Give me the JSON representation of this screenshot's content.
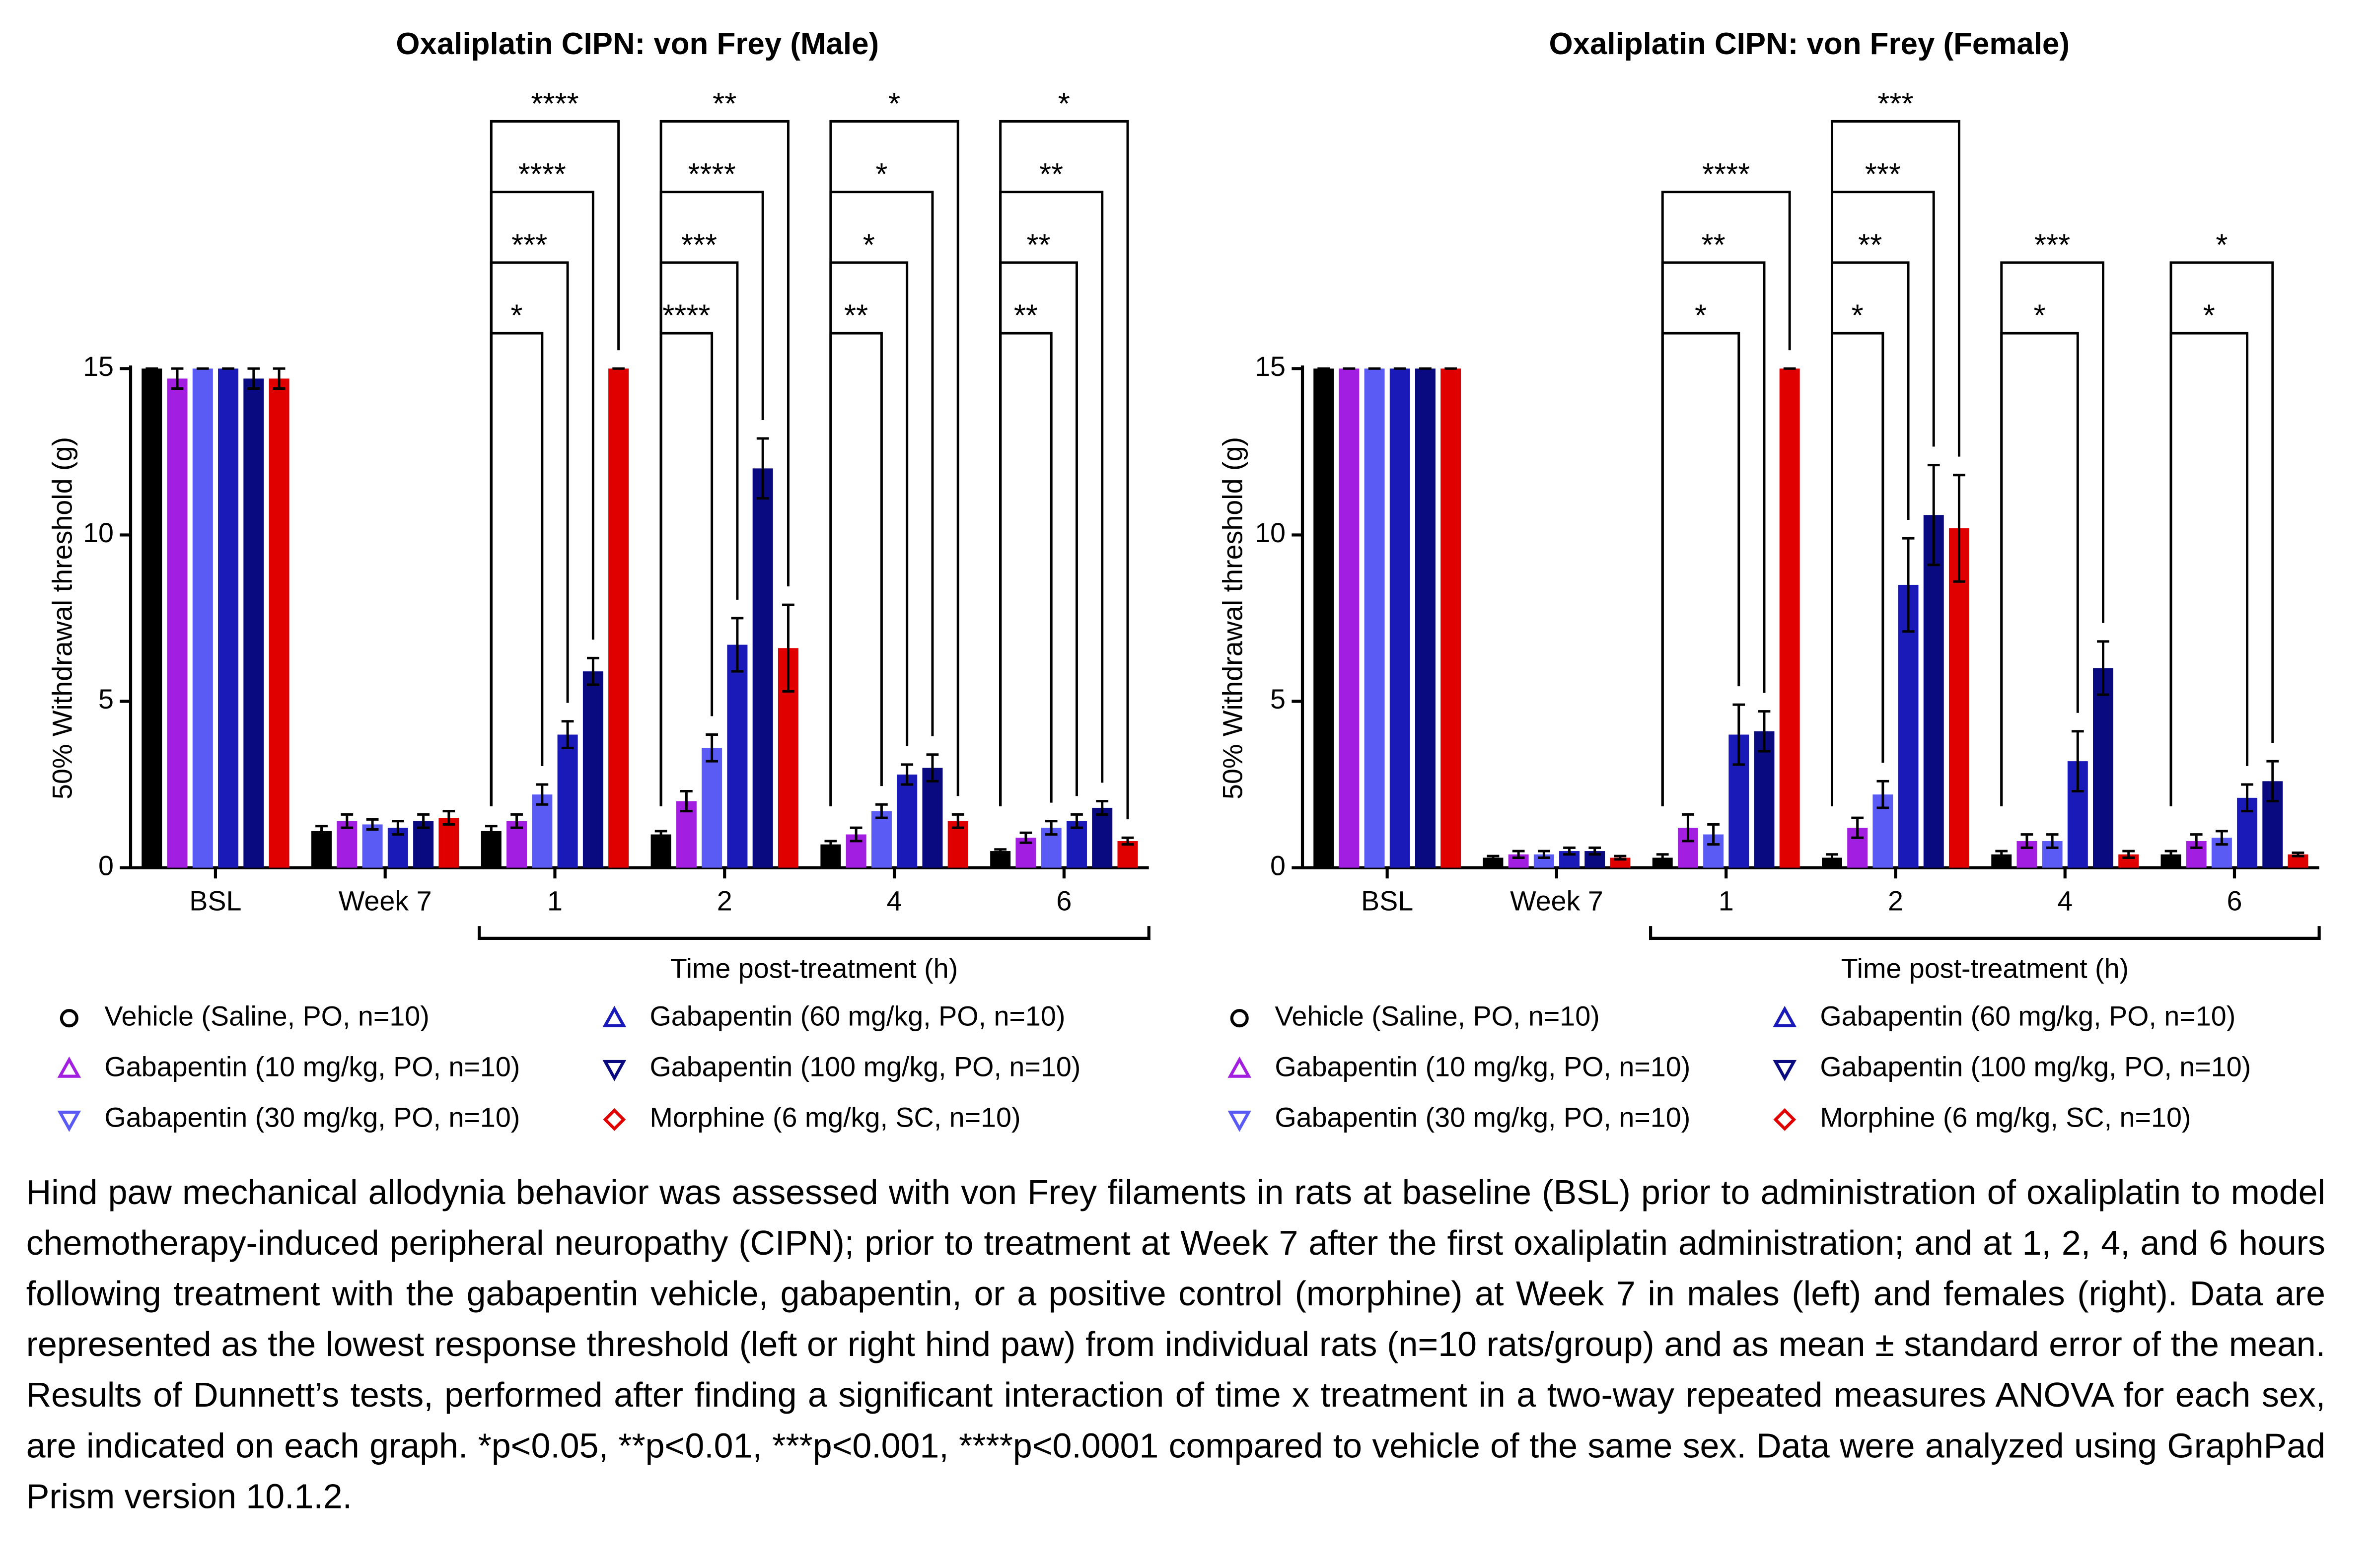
{
  "chart_data": [
    {
      "type": "bar",
      "title": "Oxaliplatin CIPN: von Frey (Male)",
      "y_label": "50% Withdrawal threshold (g)",
      "x_label": "Time post-treatment (h)",
      "categories": [
        "BSL",
        "Week 7",
        "1",
        "2",
        "4",
        "6"
      ],
      "ylim": [
        0,
        15
      ],
      "yticks": [
        0,
        5,
        10,
        15
      ],
      "grid": false,
      "series": [
        {
          "name": "Vehicle (Saline, PO, n=10)",
          "color": "#000000",
          "marker": "circle",
          "values": [
            15,
            1.1,
            1.1,
            1.0,
            0.7,
            0.5
          ],
          "errors": [
            0,
            0.15,
            0.15,
            0.1,
            0.1,
            0.05
          ],
          "significance": [
            null,
            null,
            null,
            null,
            null,
            null
          ]
        },
        {
          "name": "Gabapentin (10 mg/kg, PO, n=10)",
          "color": "#a21ee0",
          "marker": "triangle-up",
          "values": [
            14.7,
            1.4,
            1.4,
            2.0,
            1.0,
            0.9
          ],
          "errors": [
            0.3,
            0.2,
            0.2,
            0.3,
            0.2,
            0.15
          ],
          "significance": [
            null,
            null,
            null,
            null,
            null,
            null
          ]
        },
        {
          "name": "Gabapentin (30 mg/kg, PO, n=10)",
          "color": "#5a5af5",
          "marker": "triangle-down",
          "values": [
            15,
            1.3,
            2.2,
            3.6,
            1.7,
            1.2
          ],
          "errors": [
            0,
            0.15,
            0.3,
            0.4,
            0.2,
            0.2
          ],
          "significance": [
            null,
            null,
            "*",
            "****",
            "**",
            "**"
          ]
        },
        {
          "name": "Gabapentin (60 mg/kg, PO, n=10)",
          "color": "#1a1ab8",
          "marker": "triangle-up",
          "values": [
            15,
            1.2,
            4.0,
            6.7,
            2.8,
            1.4
          ],
          "errors": [
            0,
            0.2,
            0.4,
            0.8,
            0.3,
            0.2
          ],
          "significance": [
            null,
            null,
            "***",
            "***",
            "*",
            "**"
          ]
        },
        {
          "name": "Gabapentin (100 mg/kg, PO, n=10)",
          "color": "#0a0a80",
          "marker": "triangle-down",
          "values": [
            14.7,
            1.4,
            5.9,
            12.0,
            3.0,
            1.8
          ],
          "errors": [
            0.3,
            0.2,
            0.4,
            0.9,
            0.4,
            0.2
          ],
          "significance": [
            null,
            null,
            "****",
            "****",
            "*",
            "**"
          ]
        },
        {
          "name": "Morphine (6 mg/kg, SC, n=10)",
          "color": "#e00000",
          "marker": "diamond",
          "values": [
            14.7,
            1.5,
            15,
            6.6,
            1.4,
            0.8
          ],
          "errors": [
            0.3,
            0.2,
            0,
            1.3,
            0.2,
            0.1
          ],
          "significance": [
            null,
            null,
            "****",
            "**",
            "*",
            "*"
          ]
        }
      ]
    },
    {
      "type": "bar",
      "title": "Oxaliplatin CIPN: von Frey (Female)",
      "y_label": "50% Withdrawal threshold (g)",
      "x_label": "Time post-treatment (h)",
      "categories": [
        "BSL",
        "Week 7",
        "1",
        "2",
        "4",
        "6"
      ],
      "ylim": [
        0,
        15
      ],
      "yticks": [
        0,
        5,
        10,
        15
      ],
      "grid": false,
      "series": [
        {
          "name": "Vehicle (Saline, PO, n=10)",
          "color": "#000000",
          "marker": "circle",
          "values": [
            15,
            0.3,
            0.3,
            0.3,
            0.4,
            0.4
          ],
          "errors": [
            0,
            0.05,
            0.1,
            0.1,
            0.1,
            0.1
          ],
          "significance": [
            null,
            null,
            null,
            null,
            null,
            null
          ]
        },
        {
          "name": "Gabapentin (10 mg/kg, PO, n=10)",
          "color": "#a21ee0",
          "marker": "triangle-up",
          "values": [
            15,
            0.4,
            1.2,
            1.2,
            0.8,
            0.8
          ],
          "errors": [
            0,
            0.1,
            0.4,
            0.3,
            0.2,
            0.2
          ],
          "significance": [
            null,
            null,
            null,
            null,
            null,
            null
          ]
        },
        {
          "name": "Gabapentin (30 mg/kg, PO, n=10)",
          "color": "#5a5af5",
          "marker": "triangle-down",
          "values": [
            15,
            0.4,
            1.0,
            2.2,
            0.8,
            0.9
          ],
          "errors": [
            0,
            0.1,
            0.3,
            0.4,
            0.2,
            0.2
          ],
          "significance": [
            null,
            null,
            null,
            "*",
            null,
            null
          ]
        },
        {
          "name": "Gabapentin (60 mg/kg, PO, n=10)",
          "color": "#1a1ab8",
          "marker": "triangle-up",
          "values": [
            15,
            0.5,
            4.0,
            8.5,
            3.2,
            2.1
          ],
          "errors": [
            0,
            0.1,
            0.9,
            1.4,
            0.9,
            0.4
          ],
          "significance": [
            null,
            null,
            "*",
            "**",
            "*",
            "*"
          ]
        },
        {
          "name": "Gabapentin (100 mg/kg, PO, n=10)",
          "color": "#0a0a80",
          "marker": "triangle-down",
          "values": [
            15,
            0.5,
            4.1,
            10.6,
            6.0,
            2.6
          ],
          "errors": [
            0,
            0.1,
            0.6,
            1.5,
            0.8,
            0.6
          ],
          "significance": [
            null,
            null,
            "**",
            "***",
            "***",
            "*"
          ]
        },
        {
          "name": "Morphine (6 mg/kg, SC, n=10)",
          "color": "#e00000",
          "marker": "diamond",
          "values": [
            15,
            0.3,
            15,
            10.2,
            0.4,
            0.4
          ],
          "errors": [
            0,
            0.05,
            0,
            1.6,
            0.1,
            0.05
          ],
          "significance": [
            null,
            null,
            "****",
            "***",
            null,
            null
          ]
        }
      ]
    }
  ],
  "caption": "Hind paw mechanical allodynia behavior was assessed with von Frey filaments in rats at baseline (BSL) prior to administration of oxaliplatin to model chemotherapy-induced peripheral neuropathy (CIPN); prior to treatment at Week 7 after the first oxaliplatin administration; and at 1, 2, 4, and 6 hours following treatment with the gabapentin vehicle, gabapentin, or a positive control (morphine) at Week 7 in males (left) and females (right). Data are represented as the lowest response threshold (left or right hind paw) from individual rats (n=10 rats/group) and as mean ± standard error of the mean. Results of Dunnett’s tests, performed after finding a significant interaction of time x treatment in a two-way repeated measures ANOVA for each sex, are indicated on each graph. *p<0.05, **p<0.01, ***p<0.001, ****p<0.0001 compared to vehicle of the same sex. Data were analyzed using GraphPad Prism version 10.1.2."
}
